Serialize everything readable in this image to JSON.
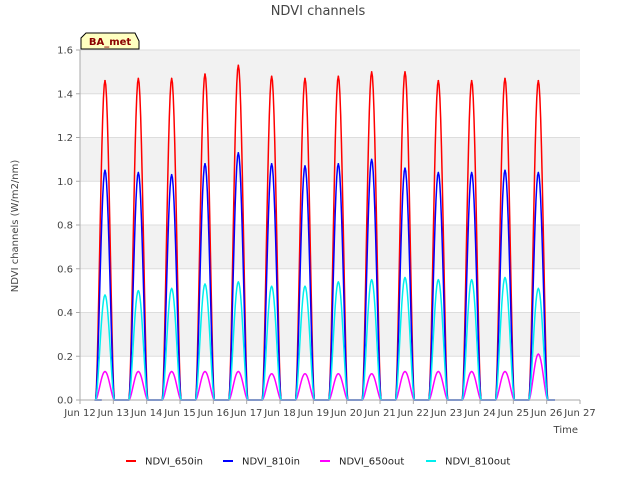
{
  "chart_data": {
    "type": "line",
    "title": "NDVI channels",
    "xlabel": "Time",
    "ylabel": "NDVI channels (W/m2/nm)",
    "badge": "BA_met",
    "xlim": [
      0,
      15
    ],
    "ylim": [
      0,
      1.6
    ],
    "x_tick_values": [
      0,
      1,
      2,
      3,
      4,
      5,
      6,
      7,
      8,
      9,
      10,
      11,
      12,
      13,
      14,
      15
    ],
    "x_tick_labels": [
      "Jun 12",
      "Jun 13",
      "Jun 14",
      "Jun 15",
      "Jun 16",
      "Jun 17",
      "Jun 18",
      "Jun 19",
      "Jun 20",
      "Jun 21",
      "Jun 22",
      "Jun 23",
      "Jun 24",
      "Jun 25",
      "Jun 26",
      "Jun 27"
    ],
    "y_ticks": [
      0.0,
      0.2,
      0.4,
      0.6,
      0.8,
      1.0,
      1.2,
      1.4,
      1.6
    ],
    "y_tick_labels": [
      "0.0",
      "0.2",
      "0.4",
      "0.6",
      "0.8",
      "1.0",
      "1.2",
      "1.4",
      "1.6"
    ],
    "peak_days": [
      0.75,
      1.75,
      2.75,
      3.75,
      4.75,
      5.75,
      6.75,
      7.75,
      8.75,
      9.75,
      10.75,
      11.75,
      12.75,
      13.75
    ],
    "series": [
      {
        "name": "NDVI_650in",
        "color": "#ff0000",
        "peaks": [
          1.46,
          1.47,
          1.47,
          1.49,
          1.53,
          1.48,
          1.47,
          1.48,
          1.5,
          1.5,
          1.46,
          1.46,
          1.47,
          1.46
        ]
      },
      {
        "name": "NDVI_810in",
        "color": "#0000ff",
        "peaks": [
          1.05,
          1.04,
          1.03,
          1.08,
          1.13,
          1.08,
          1.07,
          1.08,
          1.1,
          1.06,
          1.04,
          1.04,
          1.05,
          1.04
        ]
      },
      {
        "name": "NDVI_650out",
        "color": "#ff00ff",
        "peaks": [
          0.13,
          0.13,
          0.13,
          0.13,
          0.13,
          0.12,
          0.12,
          0.12,
          0.12,
          0.13,
          0.13,
          0.13,
          0.13,
          0.21
        ]
      },
      {
        "name": "NDVI_810out",
        "color": "#00eeee",
        "peaks": [
          0.48,
          0.5,
          0.51,
          0.53,
          0.54,
          0.52,
          0.52,
          0.54,
          0.55,
          0.56,
          0.55,
          0.55,
          0.56,
          0.51
        ]
      }
    ],
    "legend_position": "bottom"
  }
}
